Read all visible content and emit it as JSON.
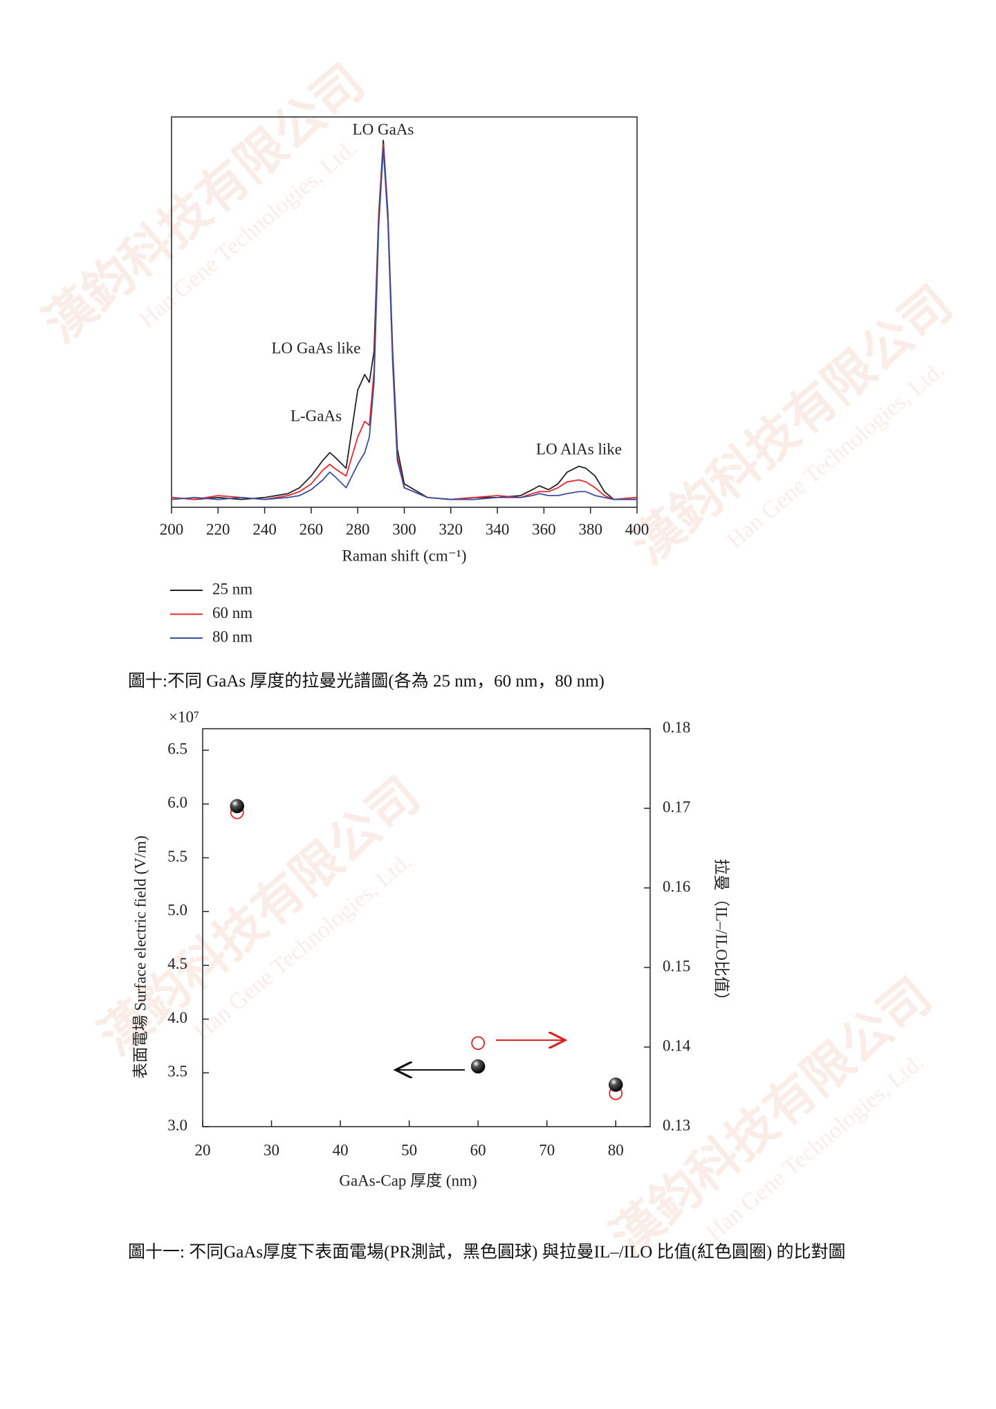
{
  "chart_data": [
    {
      "type": "line",
      "x_label": "Raman shift (cm⁻¹)",
      "annotations": [
        "LO GaAs",
        "LO GaAs like",
        "L-GaAs",
        "LO AlAs like"
      ],
      "x": [
        200,
        210,
        220,
        230,
        240,
        250,
        255,
        260,
        265,
        268,
        270,
        275,
        280,
        283,
        285,
        287,
        289,
        291,
        293,
        295,
        297,
        300,
        310,
        320,
        330,
        340,
        350,
        355,
        358,
        362,
        366,
        370,
        375,
        378,
        382,
        386,
        390,
        400
      ],
      "series": [
        {
          "name": "25 nm",
          "color": "#222222",
          "values": [
            2.5,
            2,
            2.5,
            2,
            2.5,
            3.5,
            5,
            8,
            12,
            14,
            13,
            10,
            30,
            34,
            32,
            40,
            75,
            94,
            75,
            40,
            15,
            6,
            2.5,
            2,
            2.5,
            2.5,
            3,
            4.5,
            5.5,
            4.5,
            6,
            9,
            10.5,
            10,
            8,
            4,
            2,
            2.5
          ]
        },
        {
          "name": "60 nm",
          "color": "#e8262a",
          "values": [
            2.5,
            2,
            3,
            2.5,
            2,
            3,
            4,
            6,
            9.5,
            11,
            10,
            8,
            18,
            22,
            21,
            35,
            74,
            93,
            74,
            38,
            13,
            5,
            2.5,
            2,
            2.5,
            3,
            2.5,
            3.5,
            4,
            4,
            5,
            6.5,
            7,
            6.5,
            5,
            3,
            2,
            2.5
          ]
        },
        {
          "name": "80 nm",
          "color": "#3a4ea0",
          "values": [
            2,
            2.5,
            2,
            2.5,
            2,
            2.5,
            3,
            4.5,
            7,
            9,
            8,
            5,
            11,
            14,
            18,
            32,
            72,
            92,
            73,
            37,
            12,
            5,
            2.5,
            2,
            2,
            2.5,
            2.5,
            3,
            3.5,
            3,
            3,
            3.5,
            4,
            4,
            3,
            2.5,
            2,
            2
          ]
        }
      ],
      "xlim": [
        200,
        400
      ],
      "xticks": [
        200,
        220,
        240,
        260,
        280,
        300,
        320,
        340,
        360,
        380,
        400
      ],
      "ylim": [
        0,
        100
      ]
    },
    {
      "type": "scatter",
      "x_label": "GaAs-Cap 厚度 (nm)",
      "y_label": "表面電場 Surface electric field (V/m)",
      "y_multiplier": "×10⁷",
      "y2_label": "拉曼（IL–/ILO比值）",
      "x": [
        25,
        60,
        80
      ],
      "series": [
        {
          "color": "#e02020",
          "marker": "open-circle",
          "axis": "y2",
          "values": [
            0.1695,
            0.1405,
            0.1342
          ]
        },
        {
          "color": "#111111",
          "marker": "sphere",
          "values": [
            5.98,
            3.56,
            3.39
          ]
        }
      ],
      "xlim": [
        20,
        85
      ],
      "xticks": [
        20,
        30,
        40,
        50,
        60,
        70,
        80
      ],
      "ylim": [
        3.0,
        6.7
      ],
      "yticks": [
        {
          "value": 3.0,
          "label": "3.0"
        },
        3.5,
        {
          "value": 4.0,
          "label": "4.0"
        },
        4.5,
        {
          "value": 5.0,
          "label": "5.0"
        },
        5.5,
        {
          "value": 6.0,
          "label": "6.0"
        },
        6.5
      ],
      "y2lim": [
        0.13,
        0.18
      ],
      "y2ticks": [
        0.13,
        0.14,
        0.15,
        0.16,
        0.17,
        0.18
      ]
    }
  ],
  "captions": [
    "圖十:不同 GaAs 厚度的拉曼光譜圖(各為  25 nm，60 nm，80 nm)",
    "圖十一: 不同GaAs厚度下表面電場(PR測試，黑色圓球) 與拉曼IL–/ILO 比值(紅色圓圈) 的比對圖"
  ],
  "watermark": {
    "cn": "漢鈞科技有限公司",
    "en": "Han Gene Technologies, Ltd."
  }
}
